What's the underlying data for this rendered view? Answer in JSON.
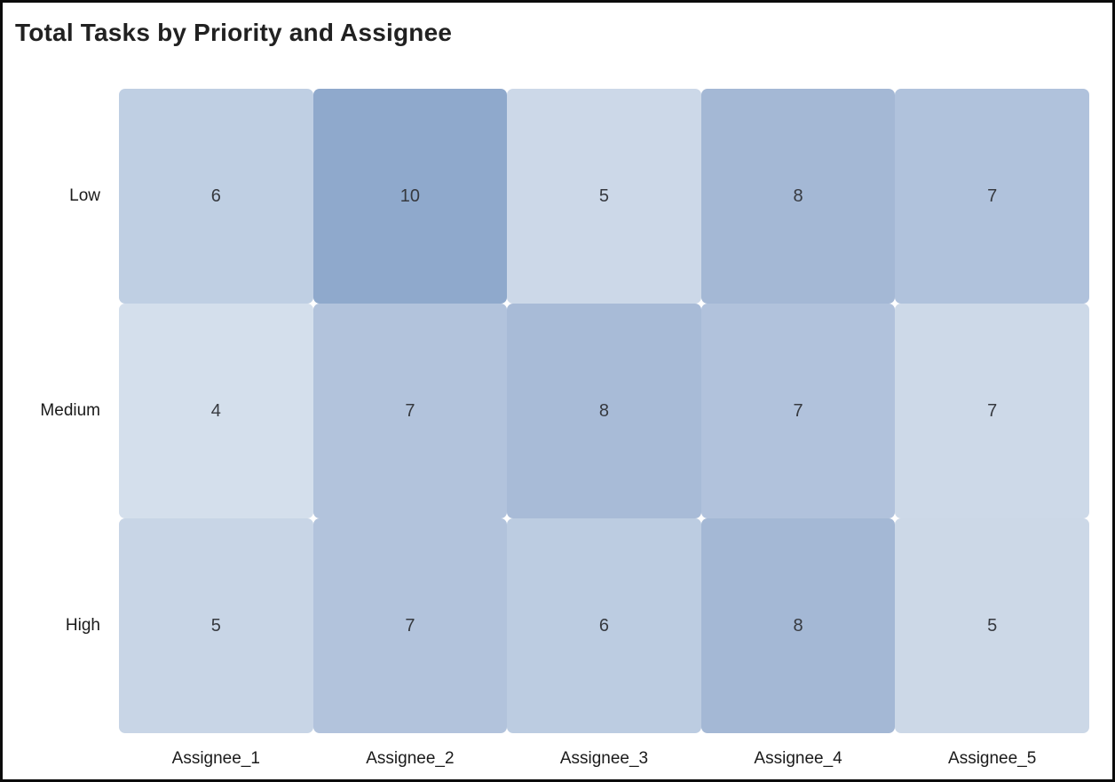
{
  "colors": {
    "page_background": "#ffffff",
    "frame_border": "#0b0b0b",
    "title_text": "#212121",
    "axis_label_text": "#1a1a1a",
    "cell_value_text": "#36393f",
    "heatmap_scale_lightest": "#d4dfec",
    "heatmap_scale_darkest": "#8fa9cc"
  },
  "chart_data": {
    "type": "heatmap",
    "title": "Total Tasks by Priority and Assignee",
    "xlabel": "",
    "ylabel": "",
    "x_categories": [
      "Assignee_1",
      "Assignee_2",
      "Assignee_3",
      "Assignee_4",
      "Assignee_5"
    ],
    "y_categories": [
      "Low",
      "Medium",
      "High"
    ],
    "values": [
      [
        6,
        10,
        5,
        8,
        7
      ],
      [
        4,
        7,
        8,
        7,
        7
      ],
      [
        5,
        7,
        6,
        8,
        5
      ]
    ],
    "cell_colors": [
      [
        "#bfcfe3",
        "#8fa9cc",
        "#ccd8e8",
        "#a4b8d5",
        "#b0c2dc"
      ],
      [
        "#d4dfec",
        "#b2c3dc",
        "#a8bbd7",
        "#b1c2dc",
        "#cdd9e8"
      ],
      [
        "#c8d5e6",
        "#b2c3dc",
        "#bccce1",
        "#a4b8d5",
        "#ccd8e7"
      ]
    ],
    "value_range": [
      4,
      10
    ],
    "legend_position": "none",
    "grid": "off"
  }
}
